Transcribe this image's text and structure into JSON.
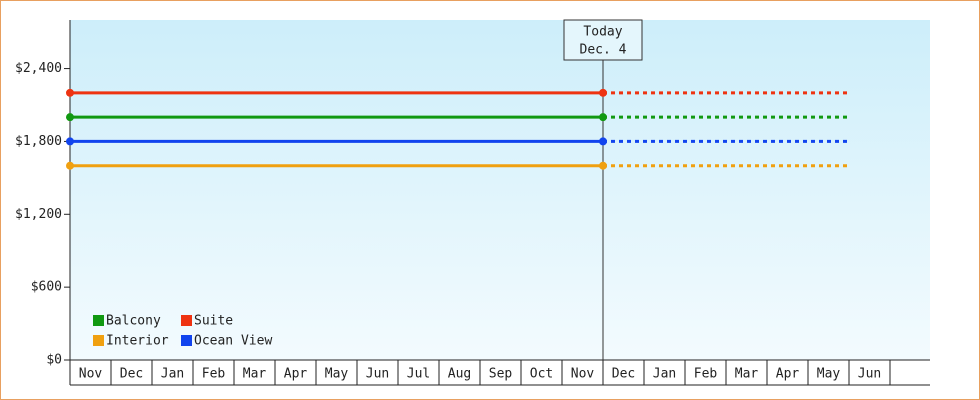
{
  "chart_data": {
    "type": "line",
    "categories": [
      "Nov",
      "Dec",
      "Jan",
      "Feb",
      "Mar",
      "Apr",
      "May",
      "Jun",
      "Jul",
      "Aug",
      "Sep",
      "Oct",
      "Nov",
      "Dec",
      "Jan",
      "Feb",
      "Mar",
      "Apr",
      "May",
      "Jun"
    ],
    "series": [
      {
        "name": "Balcony",
        "color": "#119911",
        "values": [
          2000,
          2000,
          2000,
          2000,
          2000,
          2000,
          2000,
          2000,
          2000,
          2000,
          2000,
          2000,
          2000,
          2000,
          2000,
          2000,
          2000,
          2000,
          2000,
          2000
        ]
      },
      {
        "name": "Suite",
        "color": "#ee3311",
        "values": [
          2200,
          2200,
          2200,
          2200,
          2200,
          2200,
          2200,
          2200,
          2200,
          2200,
          2200,
          2200,
          2200,
          2200,
          2200,
          2200,
          2200,
          2200,
          2200,
          2200
        ]
      },
      {
        "name": "Interior",
        "color": "#f0a010",
        "values": [
          1600,
          1600,
          1600,
          1600,
          1600,
          1600,
          1600,
          1600,
          1600,
          1600,
          1600,
          1600,
          1600,
          1600,
          1600,
          1600,
          1600,
          1600,
          1600,
          1600
        ]
      },
      {
        "name": "Ocean View",
        "color": "#1144ee",
        "values": [
          1800,
          1800,
          1800,
          1800,
          1800,
          1800,
          1800,
          1800,
          1800,
          1800,
          1800,
          1800,
          1800,
          1800,
          1800,
          1800,
          1800,
          1800,
          1800,
          1800
        ]
      }
    ],
    "ylim": [
      0,
      2800
    ],
    "yticks": [
      {
        "value": 0,
        "label": "$0"
      },
      {
        "value": 600,
        "label": "$600"
      },
      {
        "value": 1200,
        "label": "$1,200"
      },
      {
        "value": 1800,
        "label": "$1,800"
      },
      {
        "value": 2400,
        "label": "$2,400"
      }
    ],
    "annotation": {
      "lines": [
        "Today",
        "Dec. 4"
      ],
      "at": 13
    },
    "legend": "bottom-left"
  }
}
